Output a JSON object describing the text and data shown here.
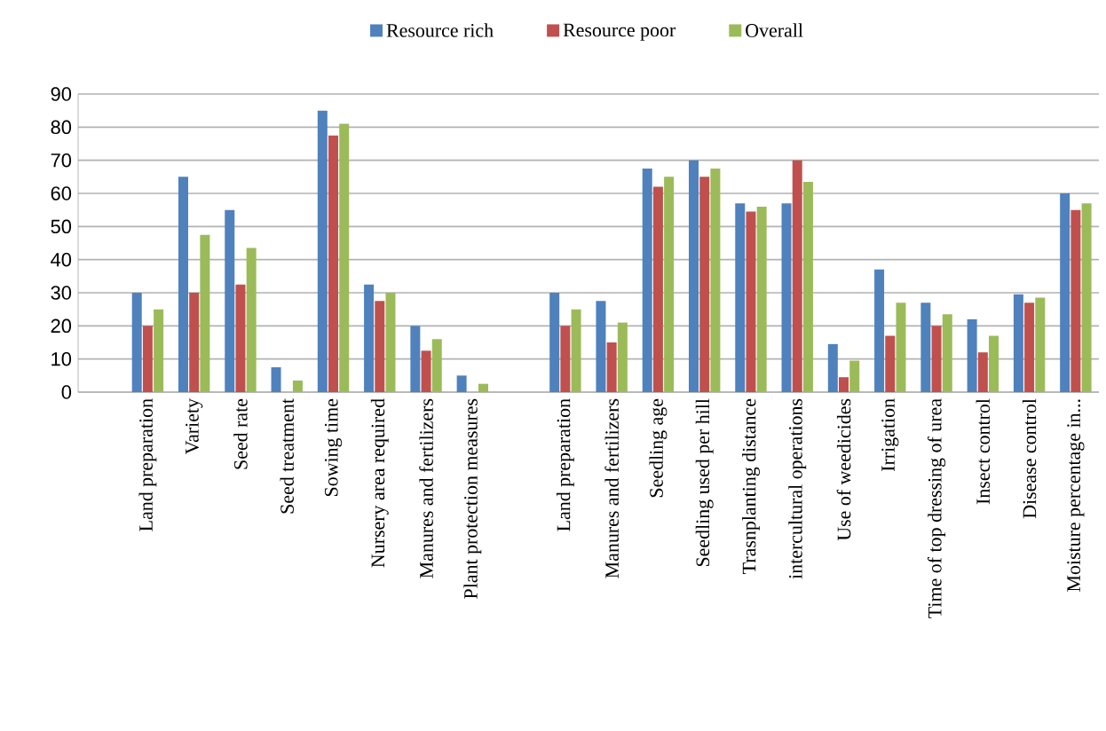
{
  "chart_data": {
    "type": "bar",
    "categories": [
      null,
      "Land preparation",
      "Variety",
      "Seed rate",
      "Seed treatment",
      "Sowing  time",
      "Nursery area required",
      "Manures and fertilizers",
      "Plant protection  measures",
      null,
      "Land preparation",
      "Manures and fertilizers",
      "Seedling  age",
      "Seedling  used  per hill",
      "Trasnplanting  distance",
      "intercultural operations",
      "Use of weedicides",
      "Irrigation",
      "Time of top dressing of urea",
      "Insect control",
      "Disease control",
      "Moisture  percentage  in..."
    ],
    "series": [
      {
        "name": "Resource rich",
        "color": "#4f81bd",
        "values": [
          null,
          30,
          65,
          55,
          7.5,
          85,
          32.5,
          20,
          5,
          null,
          30,
          27.5,
          67.5,
          70,
          57,
          57,
          14.5,
          37,
          27,
          22,
          29.5,
          60
        ]
      },
      {
        "name": "Resource poor",
        "color": "#c0504d",
        "values": [
          null,
          20,
          30,
          32.5,
          null,
          77.5,
          27.5,
          12.5,
          null,
          null,
          20,
          15,
          62,
          65,
          54.5,
          70,
          4.5,
          17,
          20,
          12,
          27,
          55
        ]
      },
      {
        "name": "Overall",
        "color": "#9bbb59",
        "values": [
          null,
          25,
          47.5,
          43.5,
          3.5,
          81,
          30,
          16,
          2.5,
          null,
          25,
          21,
          65,
          67.5,
          56,
          63.5,
          9.5,
          27,
          23.5,
          17,
          28.5,
          57
        ]
      }
    ],
    "ylim": [
      0,
      90
    ],
    "yticks": [
      0,
      10,
      20,
      30,
      40,
      50,
      60,
      70,
      80,
      90
    ],
    "grid": "y",
    "legend": "top"
  }
}
